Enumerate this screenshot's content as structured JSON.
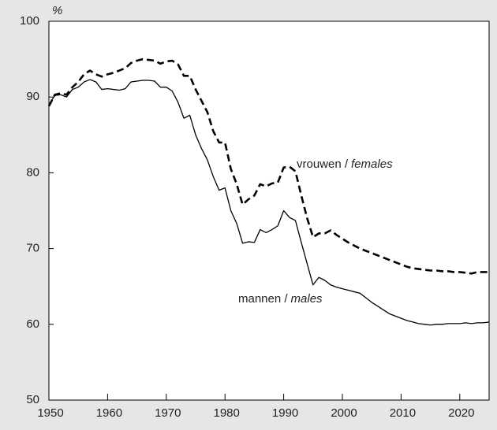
{
  "chart_data": {
    "type": "line",
    "y_unit": "%",
    "x": [
      1950,
      1951,
      1952,
      1953,
      1954,
      1955,
      1956,
      1957,
      1958,
      1959,
      1960,
      1961,
      1962,
      1963,
      1964,
      1965,
      1966,
      1967,
      1968,
      1969,
      1970,
      1971,
      1972,
      1973,
      1974,
      1975,
      1976,
      1977,
      1978,
      1979,
      1980,
      1981,
      1982,
      1983,
      1984,
      1985,
      1986,
      1987,
      1988,
      1989,
      1990,
      1991,
      1992,
      1993,
      1994,
      1995,
      1996,
      1997,
      1998,
      1999,
      2000,
      2001,
      2002,
      2003,
      2004,
      2005,
      2006,
      2007,
      2008,
      2009,
      2010,
      2011,
      2012,
      2013,
      2014,
      2015,
      2016,
      2017,
      2018,
      2019,
      2020,
      2021,
      2022,
      2023,
      2024,
      2025
    ],
    "series": [
      {
        "name": "vrouwen /",
        "name_italic": "females",
        "color": "#000000",
        "dash": true,
        "values": [
          88.8,
          90.3,
          90.5,
          90.3,
          91.3,
          92,
          93,
          93.5,
          93,
          92.7,
          93,
          93.2,
          93.5,
          93.8,
          94.5,
          94.8,
          95,
          94.9,
          94.8,
          94.4,
          94.7,
          94.8,
          94.3,
          92.8,
          92.8,
          91,
          89.5,
          88,
          85.5,
          84,
          84,
          80.5,
          78.5,
          75.8,
          76.5,
          77,
          78.5,
          78.2,
          78.6,
          78.7,
          80.7,
          80.8,
          80.2,
          77,
          74,
          71.5,
          72,
          72,
          72.4,
          71.8,
          71.3,
          70.8,
          70.4,
          70,
          69.7,
          69.4,
          69.1,
          68.8,
          68.5,
          68.2,
          67.9,
          67.6,
          67.4,
          67.3,
          67.2,
          67.1,
          67.1,
          67,
          67,
          66.9,
          66.9,
          66.8,
          66.7,
          66.9,
          66.9,
          66.9
        ]
      },
      {
        "name": "mannen /",
        "name_italic": "males",
        "color": "#000000",
        "dash": false,
        "values": [
          89,
          90.2,
          90.3,
          90,
          91,
          91.3,
          92,
          92.3,
          92,
          91,
          91.1,
          91,
          90.9,
          91.1,
          92,
          92.1,
          92.2,
          92.2,
          92.1,
          91.3,
          91.3,
          90.8,
          89.3,
          87.2,
          87.6,
          85,
          83.2,
          81.7,
          79.5,
          77.7,
          78,
          75,
          73.3,
          70.7,
          70.9,
          70.8,
          72.5,
          72.1,
          72.5,
          73,
          75,
          74.1,
          73.7,
          70.8,
          68,
          65.2,
          66.2,
          65.8,
          65.2,
          64.9,
          64.7,
          64.5,
          64.3,
          64.1,
          63.5,
          62.9,
          62.4,
          61.9,
          61.4,
          61.1,
          60.8,
          60.5,
          60.3,
          60.1,
          60,
          59.9,
          60,
          60,
          60.1,
          60.1,
          60.1,
          60.2,
          60.1,
          60.2,
          60.2,
          60.3
        ]
      }
    ],
    "xlim": [
      1950,
      2025
    ],
    "xticks": [
      1950,
      1960,
      1970,
      1980,
      1990,
      2000,
      2010,
      2020
    ],
    "ylim": [
      50,
      100
    ],
    "yticks": [
      50,
      60,
      70,
      80,
      90,
      100
    ]
  }
}
